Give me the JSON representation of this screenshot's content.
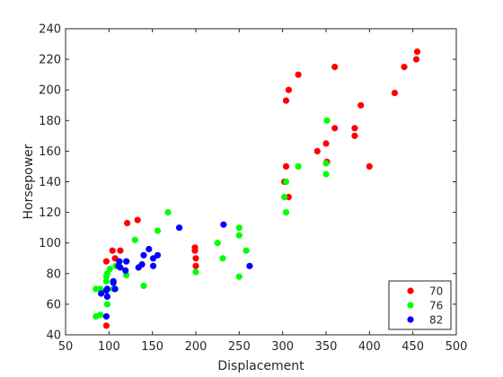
{
  "chart_data": {
    "type": "scatter",
    "title": "",
    "xlabel": "Displacement",
    "ylabel": "Horsepower",
    "xlim": [
      50,
      500
    ],
    "ylim": [
      40,
      240
    ],
    "xticks": [
      50,
      100,
      150,
      200,
      250,
      300,
      350,
      400,
      450,
      500
    ],
    "yticks": [
      40,
      60,
      80,
      100,
      120,
      140,
      160,
      180,
      200,
      220,
      240
    ],
    "grid": false,
    "legend": "bottom-right",
    "series": [
      {
        "name": "70",
        "color": "#ff0000",
        "points": [
          [
            97,
            46
          ],
          [
            97,
            88
          ],
          [
            104,
            95
          ],
          [
            107,
            90
          ],
          [
            113,
            95
          ],
          [
            121,
            113
          ],
          [
            133,
            115
          ],
          [
            199,
            97
          ],
          [
            199,
            95
          ],
          [
            200,
            90
          ],
          [
            200,
            85
          ],
          [
            302,
            140
          ],
          [
            304,
            150
          ],
          [
            304,
            193
          ],
          [
            307,
            130
          ],
          [
            307,
            200
          ],
          [
            318,
            210
          ],
          [
            340,
            160
          ],
          [
            350,
            165
          ],
          [
            351,
            153
          ],
          [
            360,
            215
          ],
          [
            360,
            175
          ],
          [
            383,
            170
          ],
          [
            383,
            175
          ],
          [
            390,
            190
          ],
          [
            400,
            150
          ],
          [
            429,
            198
          ],
          [
            440,
            215
          ],
          [
            454,
            220
          ],
          [
            455,
            225
          ]
        ]
      },
      {
        "name": "76",
        "color": "#00ff00",
        "points": [
          [
            85,
            52
          ],
          [
            85,
            70
          ],
          [
            90,
            53
          ],
          [
            90,
            70
          ],
          [
            97,
            75
          ],
          [
            97,
            78
          ],
          [
            98,
            60
          ],
          [
            98,
            80
          ],
          [
            101,
            83
          ],
          [
            105,
            70
          ],
          [
            108,
            85
          ],
          [
            120,
            79
          ],
          [
            120,
            88
          ],
          [
            130,
            102
          ],
          [
            140,
            72
          ],
          [
            156,
            108
          ],
          [
            168,
            120
          ],
          [
            200,
            81
          ],
          [
            225,
            100
          ],
          [
            231,
            90
          ],
          [
            250,
            78
          ],
          [
            250,
            105
          ],
          [
            250,
            110
          ],
          [
            258,
            95
          ],
          [
            302,
            130
          ],
          [
            304,
            120
          ],
          [
            304,
            140
          ],
          [
            318,
            150
          ],
          [
            350,
            145
          ],
          [
            350,
            152
          ],
          [
            351,
            180
          ]
        ]
      },
      {
        "name": "82",
        "color": "#0000ff",
        "points": [
          [
            91,
            67
          ],
          [
            97,
            52
          ],
          [
            97,
            69
          ],
          [
            98,
            65
          ],
          [
            98,
            70
          ],
          [
            105,
            74
          ],
          [
            105,
            75
          ],
          [
            107,
            70
          ],
          [
            111,
            85
          ],
          [
            112,
            88
          ],
          [
            113,
            84
          ],
          [
            119,
            82
          ],
          [
            120,
            88
          ],
          [
            134,
            84
          ],
          [
            138,
            86
          ],
          [
            140,
            92
          ],
          [
            146,
            96
          ],
          [
            151,
            90
          ],
          [
            151,
            85
          ],
          [
            156,
            92
          ],
          [
            181,
            110
          ],
          [
            232,
            112
          ],
          [
            262,
            85
          ]
        ]
      }
    ]
  }
}
